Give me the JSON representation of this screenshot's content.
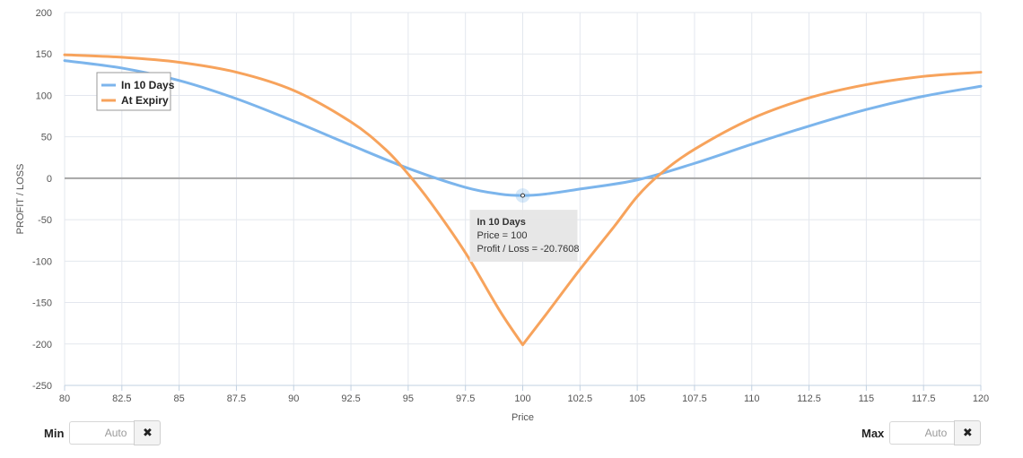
{
  "chart_data": {
    "type": "line",
    "xlabel": "Price",
    "ylabel": "PROFIT / LOSS",
    "xlim": [
      80,
      120
    ],
    "ylim": [
      -250,
      200
    ],
    "x_ticks": [
      "80",
      "82.5",
      "85",
      "87.5",
      "90",
      "92.5",
      "95",
      "97.5",
      "100",
      "102.5",
      "105",
      "107.5",
      "110",
      "112.5",
      "115",
      "117.5",
      "120"
    ],
    "y_ticks": [
      "200",
      "150",
      "100",
      "50",
      "0",
      "-50",
      "-100",
      "-150",
      "-200",
      "-250"
    ],
    "x_tick_values": [
      80,
      82.5,
      85,
      87.5,
      90,
      92.5,
      95,
      97.5,
      100,
      102.5,
      105,
      107.5,
      110,
      112.5,
      115,
      117.5,
      120
    ],
    "y_tick_values": [
      200,
      150,
      100,
      50,
      0,
      -50,
      -100,
      -150,
      -200,
      -250
    ],
    "grid": true,
    "legend_position": "top-left",
    "series": [
      {
        "name": "In 10 Days",
        "color": "#7cb5ec",
        "x": [
          80,
          82.5,
          85,
          87.5,
          90,
          92.5,
          95,
          97.5,
          99,
          100,
          101,
          102.5,
          105,
          107.5,
          110,
          112.5,
          115,
          117.5,
          120
        ],
        "y": [
          142,
          133,
          118,
          96,
          69,
          40,
          12,
          -11,
          -19,
          -20.7608,
          -19,
          -13,
          -2,
          18,
          41,
          63,
          83,
          99,
          111
        ]
      },
      {
        "name": "At Expiry",
        "color": "#f7a35c",
        "x": [
          80,
          82.5,
          85,
          87.5,
          90,
          92.5,
          94,
          95,
          96,
          97.5,
          99,
          100,
          101,
          102.5,
          104,
          105,
          106,
          107.5,
          110,
          112.5,
          115,
          117.5,
          120
        ],
        "y": [
          149,
          146,
          140,
          128,
          106,
          68,
          35,
          5,
          -30,
          -90,
          -160,
          -201,
          -165,
          -110,
          -58,
          -22,
          5,
          35,
          72,
          97,
          113,
          123,
          128
        ]
      }
    ],
    "tooltip": {
      "title": "In 10 Days",
      "line1": "Price = 100",
      "line2": "Profit / Loss = -20.7608",
      "x": 100,
      "y": -20.7608
    }
  },
  "controls": {
    "min_label": "Min",
    "min_placeholder": "Auto",
    "max_label": "Max",
    "max_placeholder": "Auto",
    "clear_glyph": "✖"
  }
}
